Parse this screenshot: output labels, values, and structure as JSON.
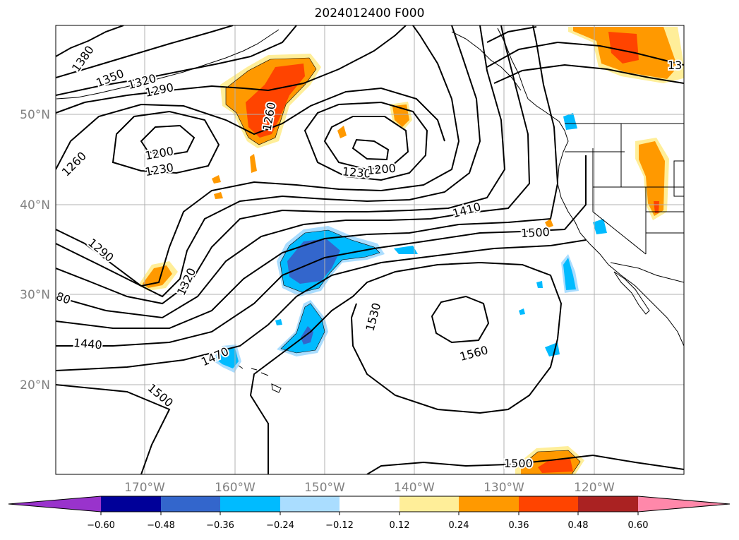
{
  "title": "2024012400 F000",
  "map": {
    "lat_labels": [
      "50°N",
      "40°N",
      "30°N",
      "20°N"
    ],
    "lon_labels": [
      "170°W",
      "160°W",
      "150°W",
      "140°W",
      "130°W",
      "120°W"
    ],
    "contour_labels": [
      "1380",
      "1350",
      "1320",
      "1290",
      "1260",
      "1260",
      "1200",
      "1230",
      "1230",
      "1200",
      "1410",
      "1500",
      "1290",
      "1320",
      "80",
      "1440",
      "1470",
      "1530",
      "1560",
      "1500",
      "1500",
      "13"
    ]
  },
  "colorbar": {
    "ticks": [
      "−0.60",
      "−0.48",
      "−0.36",
      "−0.24",
      "−0.12",
      "0.12",
      "0.24",
      "0.36",
      "0.48",
      "0.60"
    ],
    "colors": [
      "#9933cc",
      "#000099",
      "#3366cc",
      "#00bbff",
      "#aaddff",
      "#ffffff",
      "#ffee99",
      "#ff9900",
      "#ff4400",
      "#aa2222",
      "#ff88aa"
    ]
  }
}
